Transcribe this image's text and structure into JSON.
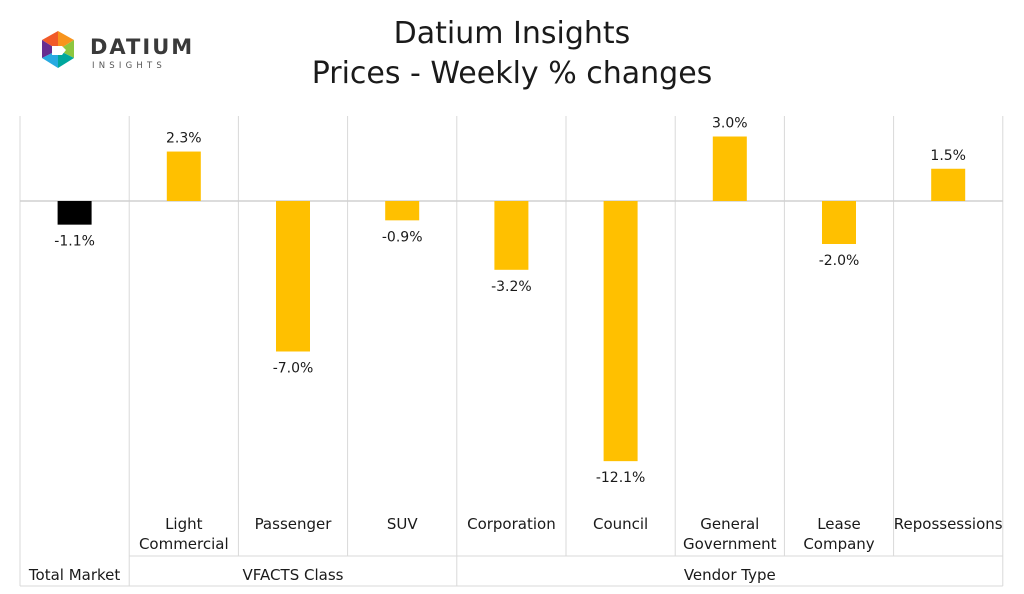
{
  "header": {
    "title_line1": "Datium Insights",
    "title_line2": "Prices - Weekly % changes"
  },
  "logo": {
    "name": "DATIUM",
    "tagline": "INSIGHTS",
    "icon": "geometric-d-logo-icon"
  },
  "colors": {
    "total_bar": "#000000",
    "segment_bar": "#FFC000",
    "gridline": "#d9d9d9",
    "zero_line": "#d0d0d0"
  },
  "chart_data": {
    "type": "bar",
    "title": "Prices - Weekly % changes",
    "unit": "%",
    "ylim": [
      -13.5,
      4.5
    ],
    "categories": [
      "Total Market",
      "Light Commercial",
      "Passenger",
      "SUV",
      "Corporation",
      "Council",
      "General Government",
      "Lease Company",
      "Repossessions"
    ],
    "category_label_lines": [
      [],
      [
        "Light",
        "Commercial"
      ],
      [
        "Passenger"
      ],
      [
        "SUV"
      ],
      [
        "Corporation"
      ],
      [
        "Council"
      ],
      [
        "General",
        "Government"
      ],
      [
        "Lease",
        "Company"
      ],
      [
        "Repossessions"
      ]
    ],
    "values": [
      -1.1,
      2.3,
      -7.0,
      -0.9,
      -3.2,
      -12.1,
      3.0,
      -2.0,
      1.5
    ],
    "data_labels": [
      "-1.1%",
      "2.3%",
      "-7.0%",
      "-0.9%",
      "-3.2%",
      "-12.1%",
      "3.0%",
      "-2.0%",
      "1.5%"
    ],
    "bar_color_keys": [
      "total_bar",
      "segment_bar",
      "segment_bar",
      "segment_bar",
      "segment_bar",
      "segment_bar",
      "segment_bar",
      "segment_bar",
      "segment_bar"
    ],
    "groups": [
      {
        "label": "Total Market",
        "start": 0,
        "end": 0
      },
      {
        "label": "VFACTS Class",
        "start": 1,
        "end": 3
      },
      {
        "label": "Vendor Type",
        "start": 4,
        "end": 8
      }
    ]
  }
}
